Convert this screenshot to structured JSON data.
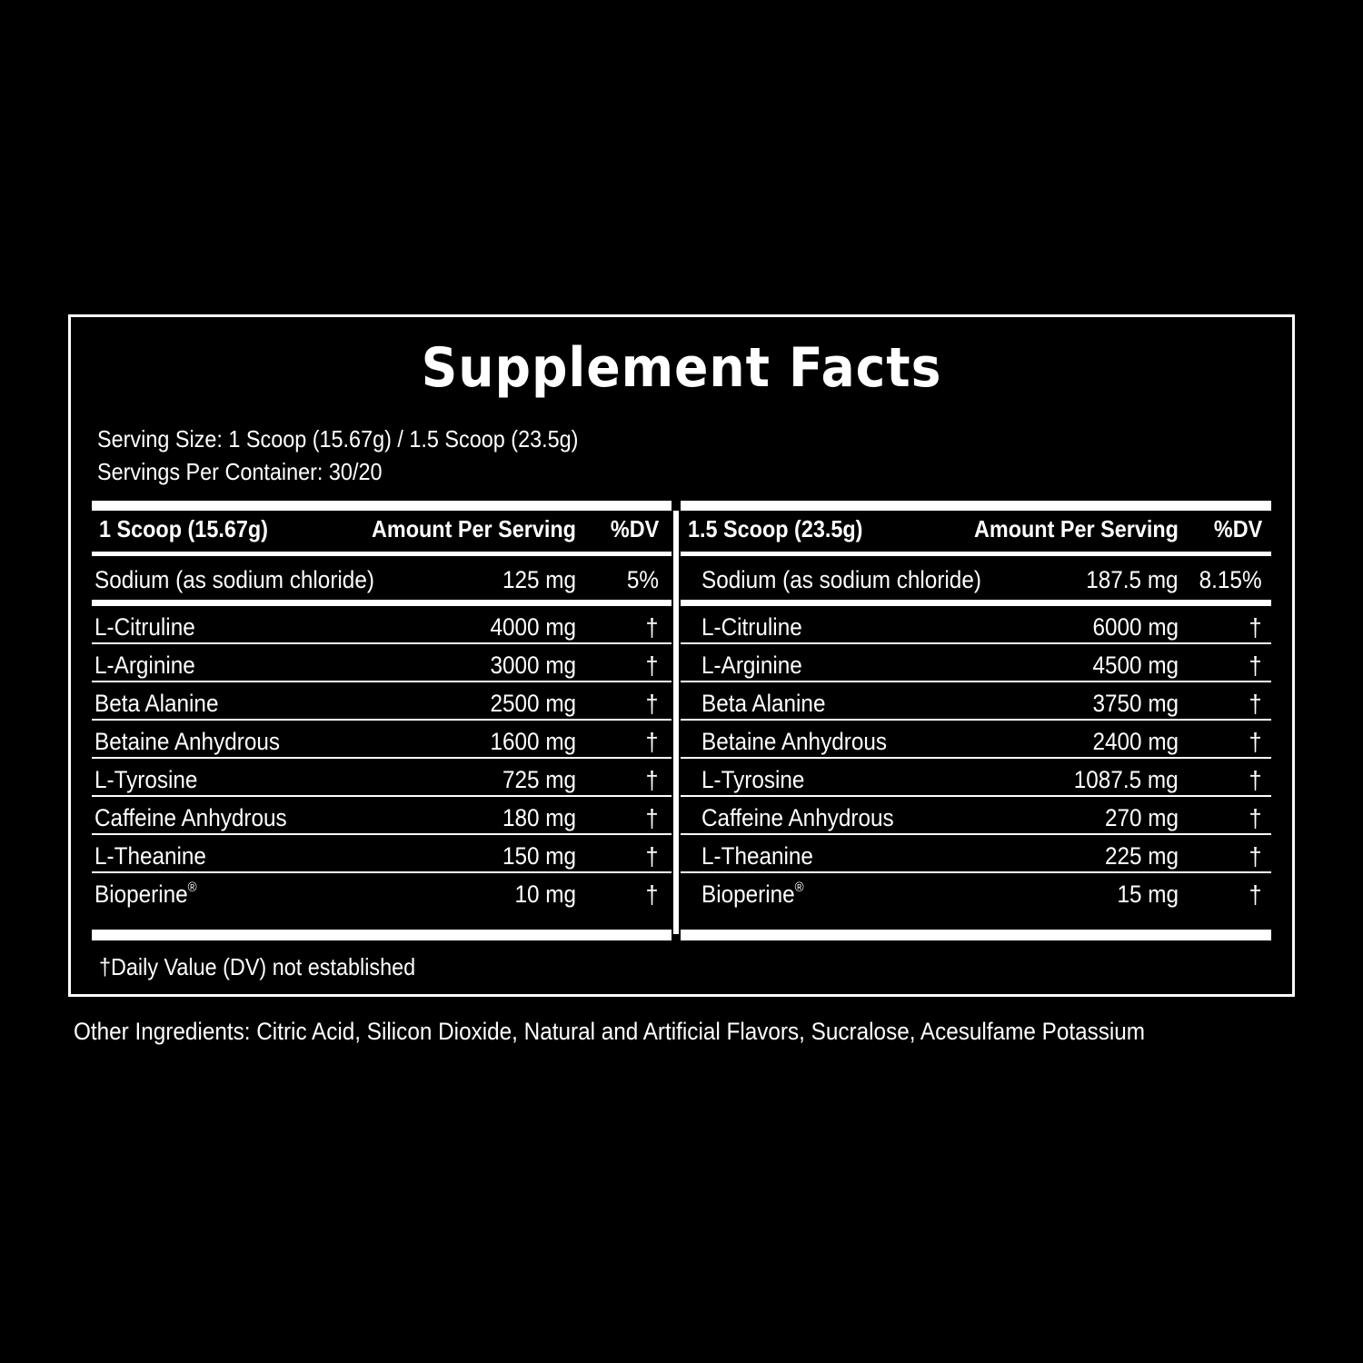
{
  "label": {
    "title": "Supplement Facts",
    "serving_size": "Serving Size: 1 Scoop (15.67g) / 1.5 Scoop (23.5g)",
    "servings_per_container": "Servings Per Container: 30/20",
    "footnote": "†Daily Value (DV) not established",
    "other_ingredients": "Other Ingredients: Citric Acid, Silicon Dioxide, Natural and Artificial Flavors, Sucralose, Acesulfame Potassium"
  },
  "panels": [
    {
      "header": {
        "serving": "1 Scoop (15.67g)",
        "amount": "Amount Per Serving",
        "dv": "%DV"
      },
      "sodium": {
        "name": "Sodium (as sodium chloride)",
        "amount": "125 mg",
        "dv": "5%"
      },
      "ingredients": [
        {
          "name": "L-Citruline",
          "amount": "4000 mg",
          "dv": "†"
        },
        {
          "name": "L-Arginine",
          "amount": "3000 mg",
          "dv": "†"
        },
        {
          "name": "Beta Alanine",
          "amount": "2500 mg",
          "dv": "†"
        },
        {
          "name": "Betaine Anhydrous",
          "amount": "1600 mg",
          "dv": "†"
        },
        {
          "name": "L-Tyrosine",
          "amount": "725 mg",
          "dv": "†"
        },
        {
          "name": "Caffeine Anhydrous",
          "amount": "180 mg",
          "dv": "†"
        },
        {
          "name": "L-Theanine",
          "amount": "150 mg",
          "dv": "†"
        },
        {
          "name": "Bioperine",
          "reg": "®",
          "amount": "10 mg",
          "dv": "†"
        }
      ]
    },
    {
      "header": {
        "serving": "1.5 Scoop (23.5g)",
        "amount": "Amount Per Serving",
        "dv": "%DV"
      },
      "sodium": {
        "name": "Sodium (as sodium chloride)",
        "amount": "187.5 mg",
        "dv": "8.15%"
      },
      "ingredients": [
        {
          "name": "L-Citruline",
          "amount": "6000 mg",
          "dv": "†"
        },
        {
          "name": "L-Arginine",
          "amount": "4500 mg",
          "dv": "†"
        },
        {
          "name": "Beta Alanine",
          "amount": "3750 mg",
          "dv": "†"
        },
        {
          "name": "Betaine Anhydrous",
          "amount": "2400 mg",
          "dv": "†"
        },
        {
          "name": "L-Tyrosine",
          "amount": "1087.5 mg",
          "dv": "†"
        },
        {
          "name": "Caffeine Anhydrous",
          "amount": "270 mg",
          "dv": "†"
        },
        {
          "name": "L-Theanine",
          "amount": "225 mg",
          "dv": "†"
        },
        {
          "name": "Bioperine",
          "reg": "®",
          "amount": "15 mg",
          "dv": "†"
        }
      ]
    }
  ],
  "colors": {
    "background": "#000000",
    "foreground": "#ffffff"
  }
}
